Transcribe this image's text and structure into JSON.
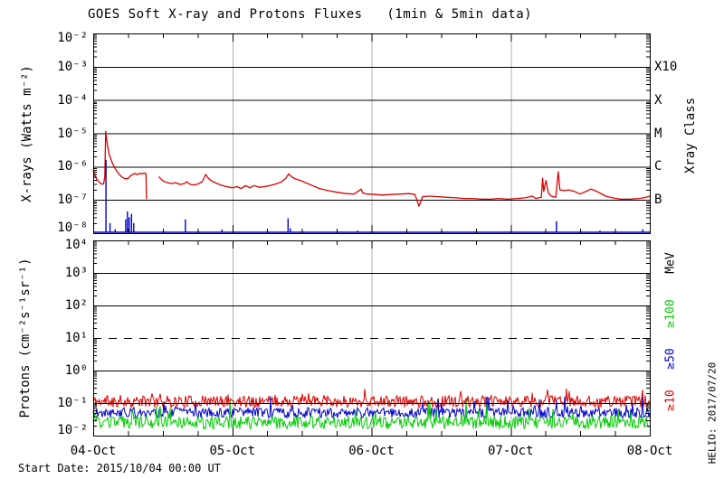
{
  "title": "GOES Soft X-ray and Protons Fluxes   (1min & 5min data)",
  "start_date": "Start Date: 2015/10/04 00:00 UT",
  "credit": "HELIO: 2017/07/20",
  "colors": {
    "xray_long": "#dd0000",
    "xray_short": "#0000cc",
    "proton_gte10": "#dd0000",
    "proton_gte50": "#0000cc",
    "proton_gte100": "#00cc00",
    "day_gridline": "#b0b0b0",
    "frame": "#000000",
    "background": "#ffffff"
  },
  "x_axis": {
    "labels": [
      "04-Oct",
      "05-Oct",
      "06-Oct",
      "07-Oct",
      "08-Oct"
    ],
    "day_hours": [
      0,
      24,
      48,
      72,
      96
    ],
    "minor_tick_hours": 6
  },
  "xray_panel": {
    "ylabel": "X-rays (Watts m⁻²)",
    "yticks": [
      {
        "exp": -2,
        "label": "10⁻²"
      },
      {
        "exp": -3,
        "label": "10⁻³"
      },
      {
        "exp": -4,
        "label": "10⁻⁴"
      },
      {
        "exp": -5,
        "label": "10⁻⁵"
      },
      {
        "exp": -6,
        "label": "10⁻⁶"
      },
      {
        "exp": -7,
        "label": "10⁻⁷"
      },
      {
        "exp": -8,
        "label": "10⁻⁸"
      }
    ],
    "class_axis_label": "Xray Class",
    "class_labels": [
      {
        "label": "X10",
        "exp": -3
      },
      {
        "label": "X",
        "exp": -4
      },
      {
        "label": "M",
        "exp": -5
      },
      {
        "label": "C",
        "exp": -6
      },
      {
        "label": "B",
        "exp": -7
      }
    ],
    "decade_lines_exp": [
      -3,
      -4,
      -5,
      -6,
      -7
    ]
  },
  "proton_panel": {
    "ylabel": "Protons (cm⁻²s⁻¹sr⁻¹)",
    "yticks": [
      {
        "exp": 4,
        "label": "10⁴"
      },
      {
        "exp": 3,
        "label": "10³"
      },
      {
        "exp": 2,
        "label": "10²"
      },
      {
        "exp": 1,
        "label": "10¹"
      },
      {
        "exp": 0,
        "label": "10⁰"
      },
      {
        "exp": -1,
        "label": "10⁻¹"
      },
      {
        "exp": -2,
        "label": "10⁻²"
      }
    ],
    "unit_label": "MeV",
    "series_labels": [
      {
        "label": "≥100",
        "color": "#00cc00"
      },
      {
        "label": "≥50",
        "color": "#0000cc"
      },
      {
        "label": "≥10",
        "color": "#dd0000"
      }
    ],
    "solid_decade_lines_exp": [
      3,
      2,
      0,
      -1
    ],
    "dashed_threshold_exp": 1
  },
  "chart_data": {
    "type": "line",
    "x_unit": "hours since 2015/10/04 00:00 UT",
    "x_range": [
      0,
      96
    ],
    "panels": [
      {
        "id": "xray",
        "y_unit": "Watts m-2",
        "y_range": [
          1e-08,
          0.01
        ],
        "day_gridlines_hours": [
          24,
          48,
          72
        ],
        "series": [
          {
            "name": "xray-long",
            "color": "#dd0000",
            "segments": [
              [
                [
                  0,
                  8e-07
                ],
                [
                  0.2,
                  6e-07
                ],
                [
                  0.5,
                  4.5e-07
                ],
                [
                  0.9,
                  3.6e-07
                ],
                [
                  1.4,
                  3e-07
                ],
                [
                  1.8,
                  3e-07
                ],
                [
                  2.0,
                  5e-07
                ],
                [
                  2.15,
                  1.15e-05
                ],
                [
                  2.3,
                  7e-06
                ],
                [
                  2.5,
                  4e-06
                ],
                [
                  2.8,
                  2.2e-06
                ],
                [
                  3.2,
                  1.4e-06
                ],
                [
                  3.6,
                  1e-06
                ],
                [
                  4.0,
                  7.5e-07
                ],
                [
                  4.5,
                  5.8e-07
                ],
                [
                  5.0,
                  4.8e-07
                ],
                [
                  5.5,
                  4.3e-07
                ],
                [
                  6.0,
                  4.4e-07
                ],
                [
                  6.4,
                  5.2e-07
                ],
                [
                  6.8,
                  5.8e-07
                ],
                [
                  7.2,
                  6.2e-07
                ],
                [
                  7.6,
                  5.7e-07
                ],
                [
                  8.0,
                  6.3e-07
                ],
                [
                  8.4,
                  6e-07
                ],
                [
                  8.8,
                  6.4e-07
                ],
                [
                  9.1,
                  6.2e-07
                ],
                [
                  9.2,
                  1.05e-07
                ]
              ],
              [
                [
                  11.3,
                  5e-07
                ],
                [
                  11.7,
                  4.2e-07
                ],
                [
                  12.2,
                  3.6e-07
                ],
                [
                  12.8,
                  3.3e-07
                ],
                [
                  13.5,
                  3.1e-07
                ],
                [
                  14.2,
                  3.3e-07
                ],
                [
                  15.0,
                  2.9e-07
                ],
                [
                  15.7,
                  3.1e-07
                ],
                [
                  16.1,
                  3.5e-07
                ],
                [
                  16.6,
                  3e-07
                ],
                [
                  17.3,
                  2.8e-07
                ],
                [
                  18.1,
                  3e-07
                ],
                [
                  18.8,
                  3.5e-07
                ],
                [
                  19.4,
                  5.8e-07
                ],
                [
                  19.8,
                  4.6e-07
                ],
                [
                  20.4,
                  3.7e-07
                ],
                [
                  21.2,
                  3.2e-07
                ],
                [
                  22.0,
                  2.8e-07
                ],
                [
                  23.0,
                  2.5e-07
                ],
                [
                  24.0,
                  2.3e-07
                ],
                [
                  24.8,
                  2.5e-07
                ],
                [
                  25.5,
                  2.2e-07
                ],
                [
                  26.3,
                  2.7e-07
                ],
                [
                  27.0,
                  2.3e-07
                ],
                [
                  27.8,
                  2.7e-07
                ],
                [
                  28.6,
                  2.4e-07
                ],
                [
                  29.5,
                  2.5e-07
                ],
                [
                  30.5,
                  2.7e-07
                ],
                [
                  31.5,
                  3e-07
                ],
                [
                  32.5,
                  3.5e-07
                ],
                [
                  33.2,
                  4.4e-07
                ],
                [
                  33.7,
                  6e-07
                ],
                [
                  34.2,
                  5e-07
                ],
                [
                  34.8,
                  4.3e-07
                ],
                [
                  35.6,
                  3.9e-07
                ],
                [
                  36.6,
                  3.3e-07
                ],
                [
                  37.8,
                  2.7e-07
                ],
                [
                  39.0,
                  2.2e-07
                ],
                [
                  40.5,
                  1.9e-07
                ],
                [
                  42.0,
                  1.7e-07
                ],
                [
                  43.5,
                  1.55e-07
                ],
                [
                  45.0,
                  1.5e-07
                ],
                [
                  46.2,
                  2.1e-07
                ],
                [
                  46.5,
                  1.6e-07
                ],
                [
                  47.3,
                  1.5e-07
                ],
                [
                  48.5,
                  1.45e-07
                ],
                [
                  50.0,
                  1.4e-07
                ],
                [
                  51.5,
                  1.45e-07
                ],
                [
                  53.0,
                  1.5e-07
                ],
                [
                  54.5,
                  1.55e-07
                ],
                [
                  55.5,
                  1.45e-07
                ],
                [
                  56.2,
                  6.5e-08
                ],
                [
                  56.8,
                  1.25e-07
                ],
                [
                  58.0,
                  1.3e-07
                ],
                [
                  59.5,
                  1.25e-07
                ],
                [
                  61.0,
                  1.2e-07
                ],
                [
                  62.5,
                  1.15e-07
                ],
                [
                  64.0,
                  1.1e-07
                ],
                [
                  65.5,
                  1.1e-07
                ],
                [
                  67.0,
                  1.05e-07
                ],
                [
                  68.5,
                  1.05e-07
                ],
                [
                  70.0,
                  1.1e-07
                ],
                [
                  71.5,
                  1.05e-07
                ],
                [
                  73.0,
                  1.1e-07
                ],
                [
                  74.5,
                  1.15e-07
                ],
                [
                  75.8,
                  1.3e-07
                ],
                [
                  76.3,
                  1.1e-07
                ],
                [
                  77.3,
                  1.2e-07
                ],
                [
                  77.5,
                  4.5e-07
                ],
                [
                  77.7,
                  1.8e-07
                ],
                [
                  78.1,
                  3.8e-07
                ],
                [
                  78.5,
                  1.6e-07
                ],
                [
                  79.0,
                  1.3e-07
                ],
                [
                  79.8,
                  1.2e-07
                ],
                [
                  80.2,
                  7e-07
                ],
                [
                  80.5,
                  2e-07
                ],
                [
                  81.2,
                  1.9e-07
                ],
                [
                  82.0,
                  2e-07
                ],
                [
                  83.0,
                  1.8e-07
                ],
                [
                  84.0,
                  1.5e-07
                ],
                [
                  85.0,
                  1.8e-07
                ],
                [
                  85.8,
                  2.1e-07
                ],
                [
                  86.6,
                  1.9e-07
                ],
                [
                  87.4,
                  1.6e-07
                ],
                [
                  88.4,
                  1.3e-07
                ],
                [
                  89.5,
                  1.15e-07
                ],
                [
                  91.0,
                  1.05e-07
                ],
                [
                  92.5,
                  1.05e-07
                ],
                [
                  94.0,
                  1.1e-07
                ],
                [
                  95.0,
                  1.15e-07
                ],
                [
                  96,
                  1.3e-07
                ]
              ]
            ]
          },
          {
            "name": "xray-short",
            "color": "#0000cc",
            "baseline": 9e-09,
            "spikes": [
              [
                2.2,
                1.6e-06
              ],
              [
                2.9,
                2e-08
              ],
              [
                3.8,
                1.3e-08
              ],
              [
                5.6,
                2.6e-08
              ],
              [
                5.9,
                4.5e-08
              ],
              [
                6.2,
                3e-08
              ],
              [
                6.6,
                3.8e-08
              ],
              [
                7.0,
                2e-08
              ],
              [
                15.9,
                2.6e-08
              ],
              [
                22.2,
                1.3e-08
              ],
              [
                33.6,
                2.8e-08
              ],
              [
                34.0,
                1.4e-08
              ],
              [
                36.5,
                1.1e-08
              ],
              [
                45.6,
                1.2e-08
              ],
              [
                60.9,
                1.1e-08
              ],
              [
                79.9,
                2.3e-08
              ],
              [
                87.4,
                1.2e-08
              ],
              [
                94.8,
                1.3e-08
              ]
            ]
          }
        ]
      },
      {
        "id": "protons",
        "y_unit": "cm-2 s-1 sr-1",
        "y_range": [
          0.01,
          10000.0
        ],
        "day_gridlines_hours": [
          24,
          48,
          72
        ],
        "threshold_line_flux": 10,
        "series": [
          {
            "name": "proton-gte10",
            "color": "#dd0000",
            "mean_flux": 0.112,
            "mean_log": -0.95,
            "log_jitter": 0.18,
            "spike_prob": 0.06,
            "spike_amp": 0.35,
            "seed": 11
          },
          {
            "name": "proton-gte50",
            "color": "#0000cc",
            "mean_flux": 0.05,
            "mean_log": -1.3,
            "log_jitter": 0.16,
            "spike_prob": 0.06,
            "spike_amp": 0.45,
            "seed": 22
          },
          {
            "name": "proton-gte100",
            "color": "#00cc00",
            "mean_flux": 0.025,
            "mean_log": -1.6,
            "log_jitter": 0.2,
            "spike_prob": 0.05,
            "spike_amp": 0.55,
            "seed": 33
          }
        ]
      }
    ]
  }
}
